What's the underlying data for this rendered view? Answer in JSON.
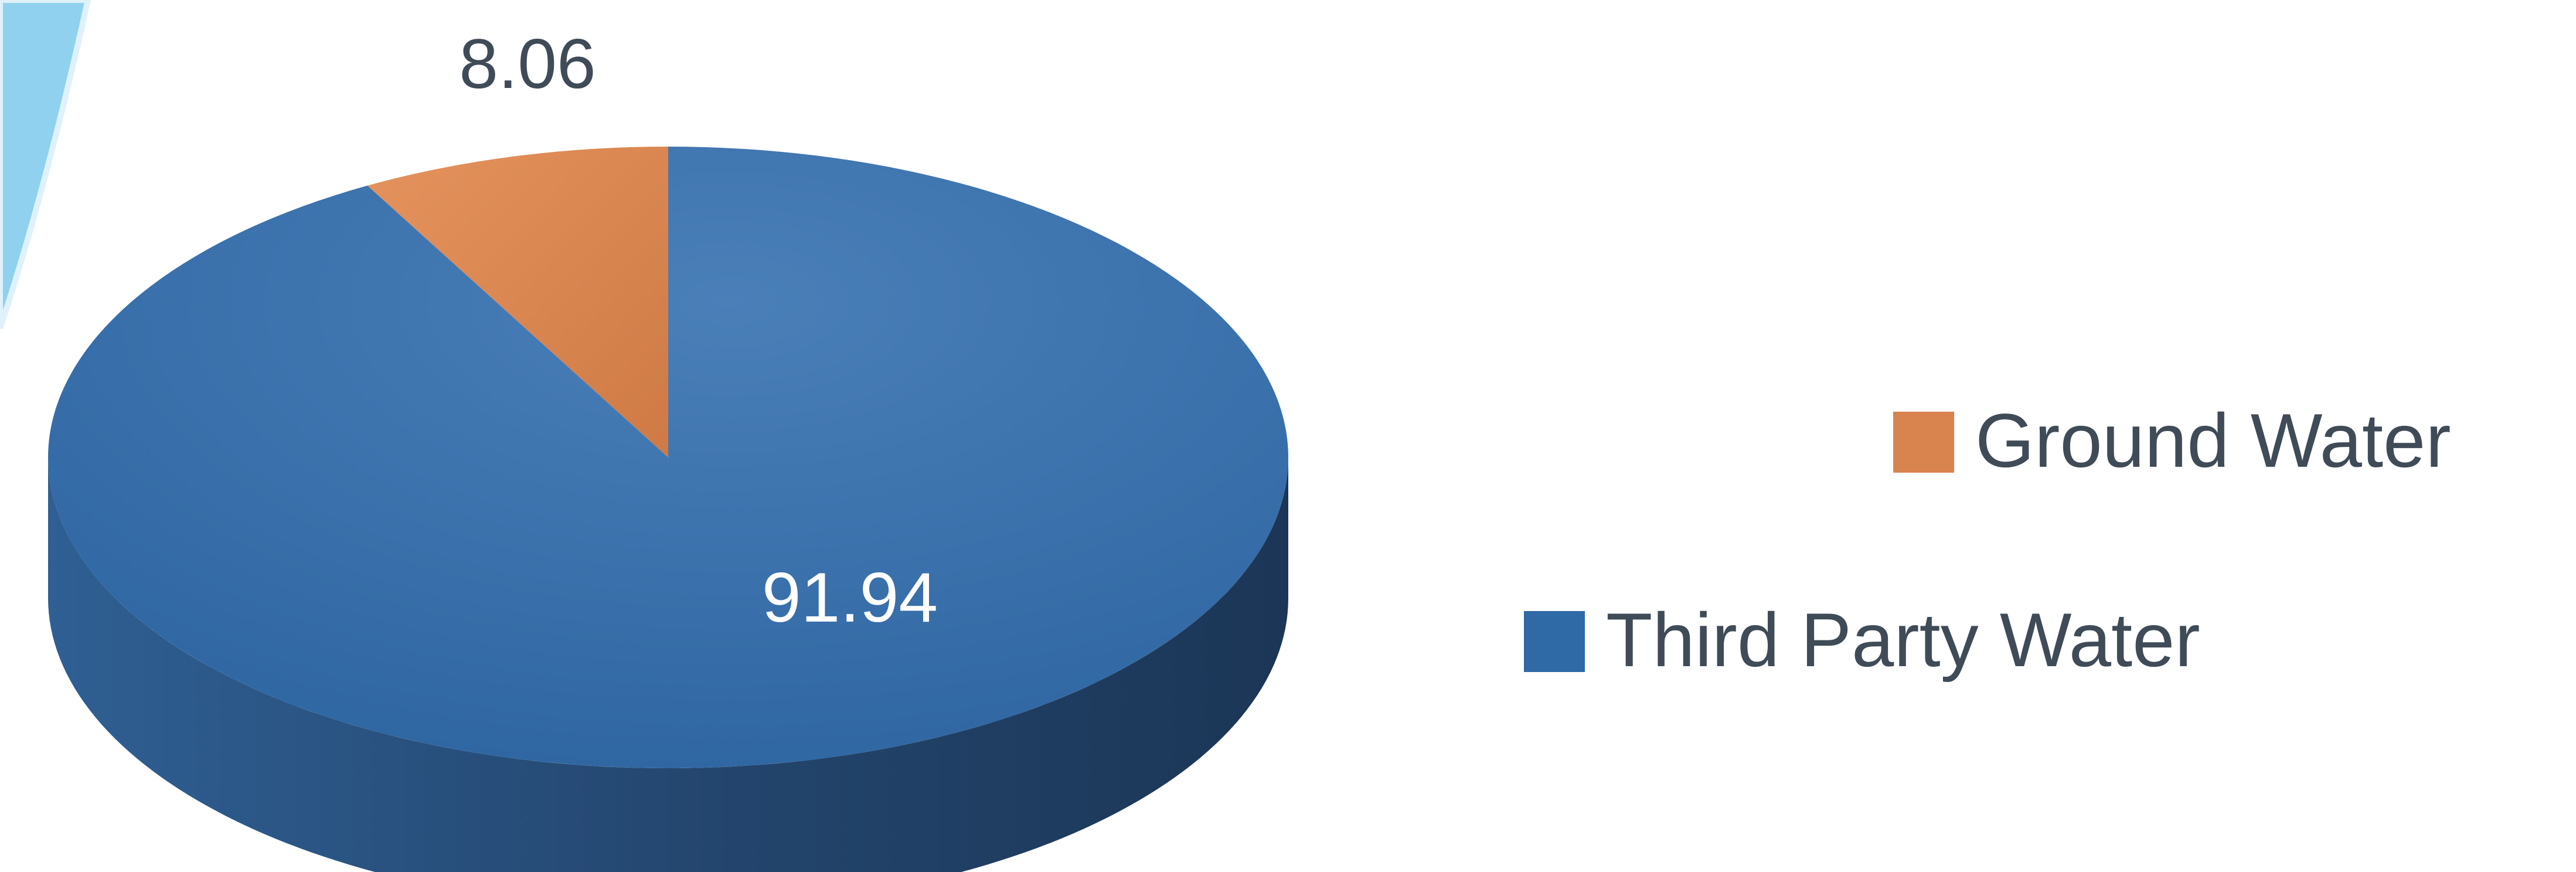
{
  "chart_data": {
    "type": "pie",
    "style": "3d",
    "categories": [
      "Ground Water",
      "Third Party Water"
    ],
    "values": [
      8.06,
      91.94
    ],
    "data_labels": [
      "8.06",
      "91.94"
    ],
    "colors": {
      "Ground Water": "#d9834f",
      "Third Party Water": "#2f6aa6"
    },
    "legend_position": "right",
    "title": "",
    "start_angle": "12 o'clock",
    "direction": "counterclockwise"
  }
}
